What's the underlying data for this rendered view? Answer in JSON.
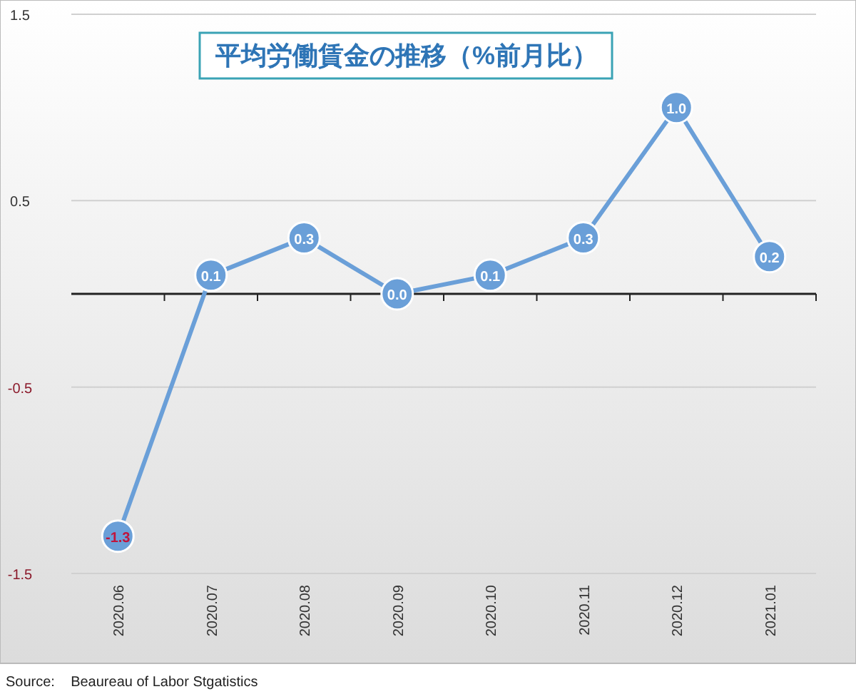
{
  "chart_data": {
    "type": "line",
    "title": "平均労働賃金の推移（%前月比）",
    "categories": [
      "2020.06",
      "2020.07",
      "2020.08",
      "2020.09",
      "2020.10",
      "2020.11",
      "2020.12",
      "2021.01"
    ],
    "series": [
      {
        "color": "#6a9fd8",
        "values": [
          -1.3,
          0.1,
          0.3,
          0.0,
          0.1,
          0.3,
          1.0,
          0.2
        ],
        "value_labels": [
          "-1.3",
          "0.1",
          "0.3",
          "0.0",
          "0.1",
          "0.3",
          "1.0",
          "0.2"
        ]
      }
    ],
    "ylim": [
      -1.5,
      1.5
    ],
    "yticks": [
      -1.5,
      -0.5,
      0.5,
      1.5
    ],
    "grid": "y",
    "marker": "circle",
    "line_style": "solid",
    "annotations": [
      "Source:    Beaureau of Labor Stgatistics"
    ]
  }
}
